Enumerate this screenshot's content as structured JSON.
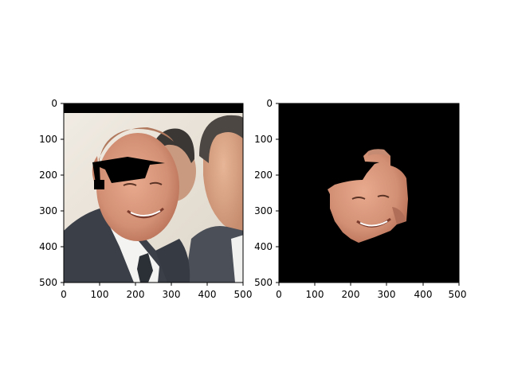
{
  "figure": {
    "panels": [
      {
        "name": "left-panel",
        "content": "photo of two men with a black obscuring patch",
        "xticks": [
          "0",
          "100",
          "200",
          "300",
          "400",
          "500"
        ],
        "yticks": [
          "0",
          "100",
          "200",
          "300",
          "400",
          "500"
        ]
      },
      {
        "name": "right-panel",
        "content": "segmented face region on black background",
        "xticks": [
          "0",
          "100",
          "200",
          "300",
          "400",
          "500"
        ],
        "yticks": [
          "0",
          "100",
          "200",
          "300",
          "400",
          "500"
        ]
      }
    ],
    "colors": {
      "background": "#ffffff",
      "axis": "#000000",
      "mask": "#000000",
      "skin": "#d9957a",
      "skin_shadow": "#b06e58",
      "suit": "#3a3f48",
      "wall": "#e9e2d6"
    }
  }
}
